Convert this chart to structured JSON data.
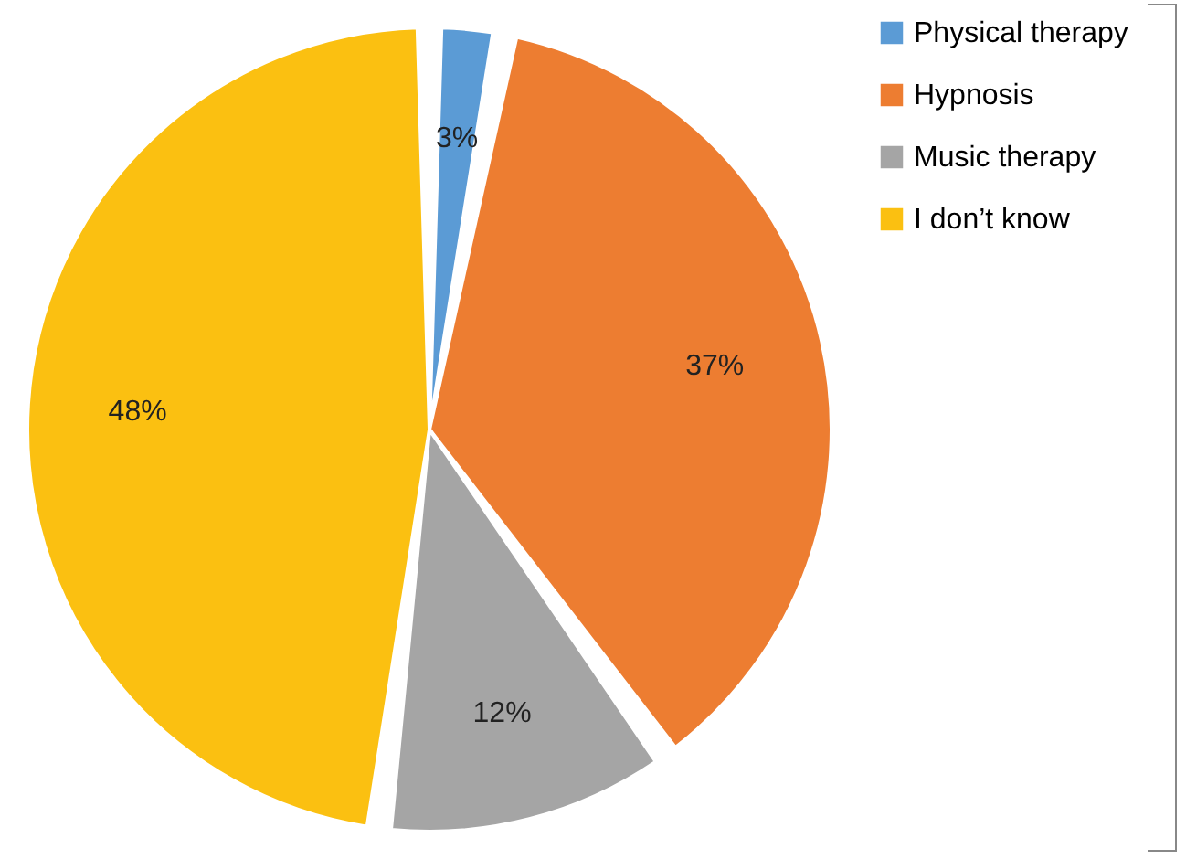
{
  "chart_data": {
    "type": "pie",
    "categories": [
      "Physical therapy",
      "Hypnosis",
      "Music therapy",
      "I don’t know"
    ],
    "values": [
      3,
      37,
      12,
      48
    ],
    "colors": [
      "#5b9bd5",
      "#ed7d31",
      "#a5a5a5",
      "#fbc011"
    ],
    "value_labels": [
      "3%",
      "37%",
      "12%",
      "48%"
    ],
    "legend": "right"
  }
}
